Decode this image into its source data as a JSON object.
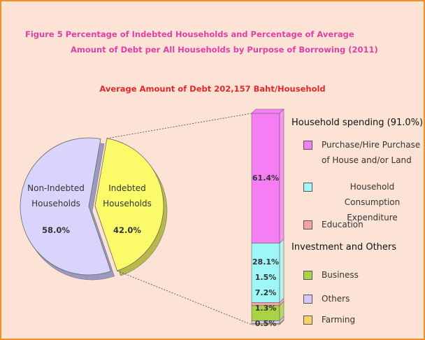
{
  "title": [
    "Figure 5 Percentage of Indebted Households and Percentage of Average",
    "Amount of Debt per All Households by Purpose of Borrowing (2011)"
  ],
  "subtitle": "Average Amount of Debt 202,157 Baht/Household",
  "chart_data": [
    {
      "type": "pie",
      "categories": [
        "Non-Indebted Households",
        "Indebted Households"
      ],
      "values": [
        58.0,
        42.0
      ],
      "value_labels": [
        "58.0%",
        "42.0%"
      ],
      "colors": [
        "#d8d4fb",
        "#fbfb6a"
      ]
    },
    {
      "type": "stacked-bar",
      "legend_groups": [
        "Household spending (91.0%)",
        "Investment and Others"
      ],
      "series": [
        {
          "name": "Purchase/Hire Purchase of House and/or Land",
          "color": "#f57ef5",
          "values": [
            61.4
          ],
          "value_labels": [
            "61.4%"
          ]
        },
        {
          "name": "Household Consumption Expenditure",
          "color": "#9ef6f6",
          "values": [
            28.1
          ],
          "value_labels": [
            "28.1%"
          ]
        },
        {
          "name": "Education",
          "color": "#f4a2a2",
          "values": [
            1.5
          ],
          "value_labels": [
            "1.5%"
          ]
        },
        {
          "name": "Business",
          "color": "#a9d246",
          "values": [
            7.2
          ],
          "value_labels": [
            "7.2%"
          ]
        },
        {
          "name": "Others",
          "color": "#d6c8f7",
          "values": [
            1.3
          ],
          "value_labels": [
            "1.3%"
          ]
        },
        {
          "name": "Farming",
          "color": "#fbd266",
          "values": [
            0.5
          ],
          "value_labels": [
            "0.5%"
          ]
        }
      ]
    }
  ]
}
